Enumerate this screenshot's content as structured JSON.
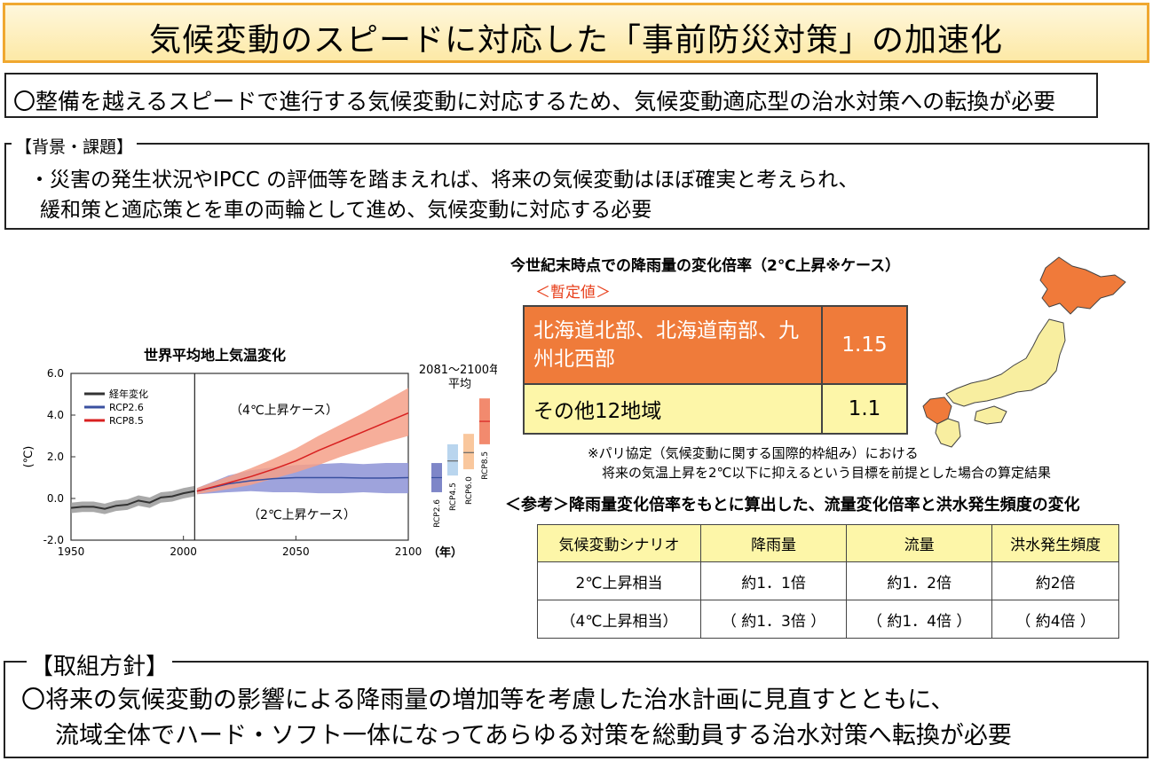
{
  "title": "気候変動のスピードに対応した「事前防災対策」の加速化",
  "summary": "〇整備を越えるスピードで進行する気候変動に対応するため、気候変動適応型の治水対策への転換が必要",
  "background": {
    "legend": "【背景・課題】",
    "line1": "・災害の発生状況やIPCC の評価等を踏まえれば、将来の気候変動はほぼ確実と考えられ、",
    "line2": "緩和策と適応策とを車の両輪として進め、気候変動に対応する必要"
  },
  "temp_chart": {
    "title": "世界平均地上気温変化",
    "side_label": "2081～2100年\n平均",
    "legend": [
      "経年変化",
      "RCP2.6",
      "RCP8.5"
    ],
    "ann_4c": "（4℃上昇ケース）",
    "ann_2c": "（2℃上昇ケース）",
    "year_unit": "（年）",
    "ylabel": "(℃)",
    "bar_labels": [
      "RCP2.6",
      "RCP4.5",
      "RCP6.0",
      "RCP8.5"
    ]
  },
  "chart_data": {
    "type": "line",
    "title": "世界平均地上気温変化",
    "ylabel": "(℃)",
    "xlabel": "（年）",
    "xlim": [
      1950,
      2100
    ],
    "ylim": [
      -2.0,
      6.0
    ],
    "xticks": [
      1950,
      2000,
      2050,
      2100
    ],
    "yticks": [
      -2.0,
      0.0,
      2.0,
      4.0,
      6.0
    ],
    "series": [
      {
        "name": "経年変化",
        "color": "#333333",
        "x": [
          1950,
          1955,
          1960,
          1965,
          1970,
          1975,
          1980,
          1985,
          1990,
          1995,
          2000,
          2005
        ],
        "y": [
          -0.45,
          -0.4,
          -0.4,
          -0.5,
          -0.35,
          -0.3,
          -0.1,
          -0.2,
          0.05,
          0.1,
          0.25,
          0.35
        ],
        "band": 0.25
      },
      {
        "name": "RCP2.6",
        "color": "#3a50a0",
        "x": [
          2006,
          2020,
          2030,
          2040,
          2050,
          2060,
          2070,
          2080,
          2090,
          2100
        ],
        "y": [
          0.35,
          0.7,
          0.85,
          0.95,
          1.0,
          1.0,
          1.0,
          0.98,
          0.98,
          1.0
        ],
        "lower": [
          0.2,
          0.3,
          0.35,
          0.3,
          0.3,
          0.25,
          0.25,
          0.3,
          0.25,
          0.25
        ],
        "upper": [
          0.5,
          1.1,
          1.35,
          1.5,
          1.6,
          1.65,
          1.7,
          1.65,
          1.7,
          1.7
        ]
      },
      {
        "name": "RCP8.5",
        "color": "#d82020",
        "x": [
          2006,
          2020,
          2030,
          2040,
          2050,
          2060,
          2070,
          2080,
          2090,
          2100
        ],
        "y": [
          0.35,
          0.75,
          1.05,
          1.4,
          1.8,
          2.3,
          2.75,
          3.2,
          3.65,
          4.1
        ],
        "lower": [
          0.2,
          0.45,
          0.65,
          0.95,
          1.25,
          1.6,
          2.0,
          2.35,
          2.7,
          3.0
        ],
        "upper": [
          0.5,
          1.05,
          1.45,
          1.9,
          2.4,
          3.0,
          3.55,
          4.1,
          4.7,
          5.3
        ]
      }
    ],
    "ranges_2081_2100": [
      {
        "name": "RCP2.6",
        "low": 0.3,
        "mid": 1.0,
        "high": 1.7,
        "color": "#7e86c8"
      },
      {
        "name": "RCP4.5",
        "low": 1.1,
        "mid": 1.8,
        "high": 2.6,
        "color": "#b9d5ee"
      },
      {
        "name": "RCP6.0",
        "low": 1.4,
        "mid": 2.2,
        "high": 3.1,
        "color": "#f9c79d"
      },
      {
        "name": "RCP8.5",
        "low": 2.6,
        "mid": 3.7,
        "high": 4.8,
        "color": "#f28a6e"
      }
    ]
  },
  "rain": {
    "title": "今世紀末時点での降雨量の変化倍率（2℃上昇※ケース）",
    "provisional": "＜暫定値＞",
    "rows": [
      {
        "region": "北海道北部、北海道南部、九州北西部",
        "value": "1.15"
      },
      {
        "region": "その他12地域",
        "value": "1.1"
      }
    ],
    "note1": "※パリ協定（気候変動に関する国際的枠組み）における",
    "note2": "将来の気温上昇を2℃以下に抑えるという目標を前提とした場合の算定結果",
    "map_colors": {
      "highlight": "#f07a3a",
      "other": "#f8eea0"
    }
  },
  "reference": {
    "title": "＜参考＞降雨量変化倍率をもとに算出した、流量変化倍率と洪水発生頻度の変化",
    "headers": [
      "気候変動シナリオ",
      "降雨量",
      "流量",
      "洪水発生頻度"
    ],
    "rows": [
      [
        "2℃上昇相当",
        "約1．1倍",
        "約1．2倍",
        "約2倍"
      ],
      [
        "（4℃上昇相当）",
        "（ 約1．3倍 ）",
        "（ 約1．4倍 ）",
        "（ 約4倍 ）"
      ]
    ]
  },
  "policy": {
    "legend": "【取組方針】",
    "line1": "〇将来の気候変動の影響による降雨量の増加等を考慮した治水計画に見直すとともに、",
    "line2": "流域全体でハード・ソフト一体になってあらゆる対策を総動員する治水対策へ転換が必要"
  }
}
